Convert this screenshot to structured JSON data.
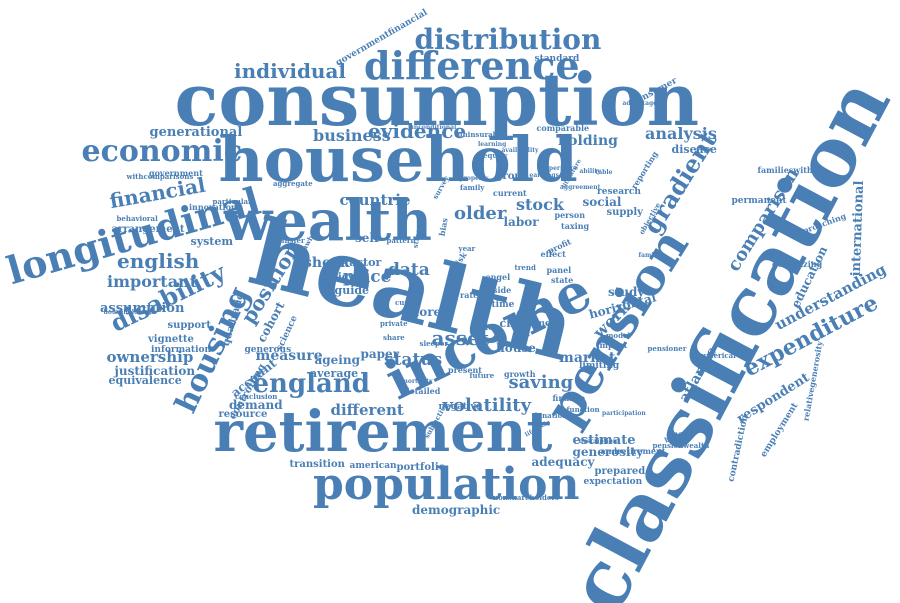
{
  "word_color": "#4a7fb5",
  "background": "#ffffff",
  "words": [
    {
      "text": "health"
    },
    {
      "text": "classification"
    },
    {
      "text": "consumption"
    },
    {
      "text": "household"
    },
    {
      "text": "retirement"
    },
    {
      "text": "income"
    },
    {
      "text": "wealth"
    },
    {
      "text": "pension"
    },
    {
      "text": "population"
    },
    {
      "text": "longitudinal"
    },
    {
      "text": "difference"
    },
    {
      "text": "distribution"
    },
    {
      "text": "economic"
    },
    {
      "text": "housing"
    },
    {
      "text": "england"
    },
    {
      "text": "disability"
    },
    {
      "text": "expenditure"
    },
    {
      "text": "individual"
    },
    {
      "text": "gradient"
    },
    {
      "text": "financial"
    },
    {
      "text": "english"
    },
    {
      "text": "evidence"
    },
    {
      "text": "business"
    },
    {
      "text": "analysis"
    },
    {
      "text": "generational"
    },
    {
      "text": "countrie"
    },
    {
      "text": "older"
    },
    {
      "text": "stock"
    },
    {
      "text": "asset"
    },
    {
      "text": "saving"
    },
    {
      "text": "volatility"
    },
    {
      "text": "status"
    },
    {
      "text": "price"
    },
    {
      "text": "data"
    },
    {
      "text": "shock"
    },
    {
      "text": "factor"
    },
    {
      "text": "position"
    },
    {
      "text": "important"
    },
    {
      "text": "assumption"
    },
    {
      "text": "ownership"
    },
    {
      "text": "measure"
    },
    {
      "text": "ageing"
    },
    {
      "text": "comparison"
    },
    {
      "text": "understanding"
    },
    {
      "text": "respondent"
    },
    {
      "text": "international"
    },
    {
      "text": "education"
    },
    {
      "text": "work"
    },
    {
      "text": "market"
    },
    {
      "text": "study"
    },
    {
      "text": "horizontal"
    },
    {
      "text": "estimate"
    },
    {
      "text": "generosity"
    },
    {
      "text": "adequacy"
    },
    {
      "text": "portfolio"
    },
    {
      "text": "demographic"
    },
    {
      "text": "different"
    },
    {
      "text": "demand"
    },
    {
      "text": "resource"
    },
    {
      "text": "system"
    },
    {
      "text": "arrangement"
    },
    {
      "text": "cohort"
    },
    {
      "text": "account"
    },
    {
      "text": "quadratic"
    },
    {
      "text": "justification"
    },
    {
      "text": "equivalence"
    },
    {
      "text": "vignette"
    },
    {
      "text": "support"
    },
    {
      "text": "information"
    },
    {
      "text": "controlling"
    },
    {
      "text": "holding"
    },
    {
      "text": "labor"
    },
    {
      "text": "social"
    },
    {
      "text": "standard"
    },
    {
      "text": "consumer"
    },
    {
      "text": "disease"
    },
    {
      "text": "permanent"
    },
    {
      "text": "atlantic"
    },
    {
      "text": "contradiction"
    },
    {
      "text": "employment"
    },
    {
      "text": "relativegenerosity"
    },
    {
      "text": "downsizing"
    },
    {
      "text": "approaching"
    },
    {
      "text": "familieswith"
    },
    {
      "text": "transition"
    },
    {
      "text": "american"
    },
    {
      "text": "nonshareholders"
    },
    {
      "text": "prepared"
    },
    {
      "text": "expectation"
    },
    {
      "text": "andretirement"
    },
    {
      "text": "governmentfinancial"
    },
    {
      "text": "house"
    },
    {
      "text": "paper"
    },
    {
      "text": "average"
    },
    {
      "text": "more"
    },
    {
      "text": "child"
    },
    {
      "text": "most"
    },
    {
      "text": "limiting"
    },
    {
      "text": "growth"
    },
    {
      "text": "self"
    },
    {
      "text": "guide"
    },
    {
      "text": "policy"
    },
    {
      "text": "science"
    },
    {
      "text": "generous"
    },
    {
      "text": "finance"
    },
    {
      "text": "function"
    },
    {
      "text": "comparable"
    },
    {
      "text": "reporting"
    },
    {
      "text": "group"
    },
    {
      "text": "current"
    },
    {
      "text": "supply"
    },
    {
      "text": "research"
    },
    {
      "text": "objective"
    },
    {
      "text": "innovation"
    },
    {
      "text": "government"
    },
    {
      "text": "withcomparisons"
    },
    {
      "text": "behavioral"
    },
    {
      "text": "householdswith"
    },
    {
      "text": "conclusion"
    },
    {
      "text": "present"
    },
    {
      "text": "detailed"
    },
    {
      "text": "negative"
    },
    {
      "text": "donation"
    },
    {
      "text": "pensioner"
    },
    {
      "text": "numerical"
    },
    {
      "text": "participation"
    },
    {
      "text": "pensionwealth"
    },
    {
      "text": "biological"
    },
    {
      "text": "subjective"
    },
    {
      "text": "particular"
    },
    {
      "text": "aggregate"
    },
    {
      "text": "transfer"
    },
    {
      "text": "drawback"
    },
    {
      "text": "taxing"
    },
    {
      "text": "person"
    },
    {
      "text": "profit"
    },
    {
      "text": "effect"
    },
    {
      "text": "panel"
    },
    {
      "text": "state"
    },
    {
      "text": "time"
    },
    {
      "text": "rate"
    },
    {
      "text": "risk"
    },
    {
      "text": "bias"
    },
    {
      "text": "year"
    },
    {
      "text": "scale"
    },
    {
      "text": "impact"
    },
    {
      "text": "model"
    },
    {
      "text": "side"
    },
    {
      "text": "future"
    },
    {
      "text": "engel"
    },
    {
      "text": "trend"
    },
    {
      "text": "curve"
    },
    {
      "text": "survey"
    },
    {
      "text": "strength"
    },
    {
      "text": "pattern"
    },
    {
      "text": "private"
    },
    {
      "text": "share"
    },
    {
      "text": "mortality"
    },
    {
      "text": "sleeper"
    },
    {
      "text": "family"
    },
    {
      "text": "unconditional"
    },
    {
      "text": "uninsurable"
    },
    {
      "text": "experience"
    },
    {
      "text": "equity"
    },
    {
      "text": "learning"
    },
    {
      "text": "availability"
    },
    {
      "text": "lifecycle"
    },
    {
      "text": "families"
    },
    {
      "text": "description"
    },
    {
      "text": "literature"
    },
    {
      "text": "ability"
    },
    {
      "text": "table"
    },
    {
      "text": "aggreement"
    },
    {
      "text": "earnings"
    },
    {
      "text": "property"
    },
    {
      "text": "advantage"
    }
  ]
}
